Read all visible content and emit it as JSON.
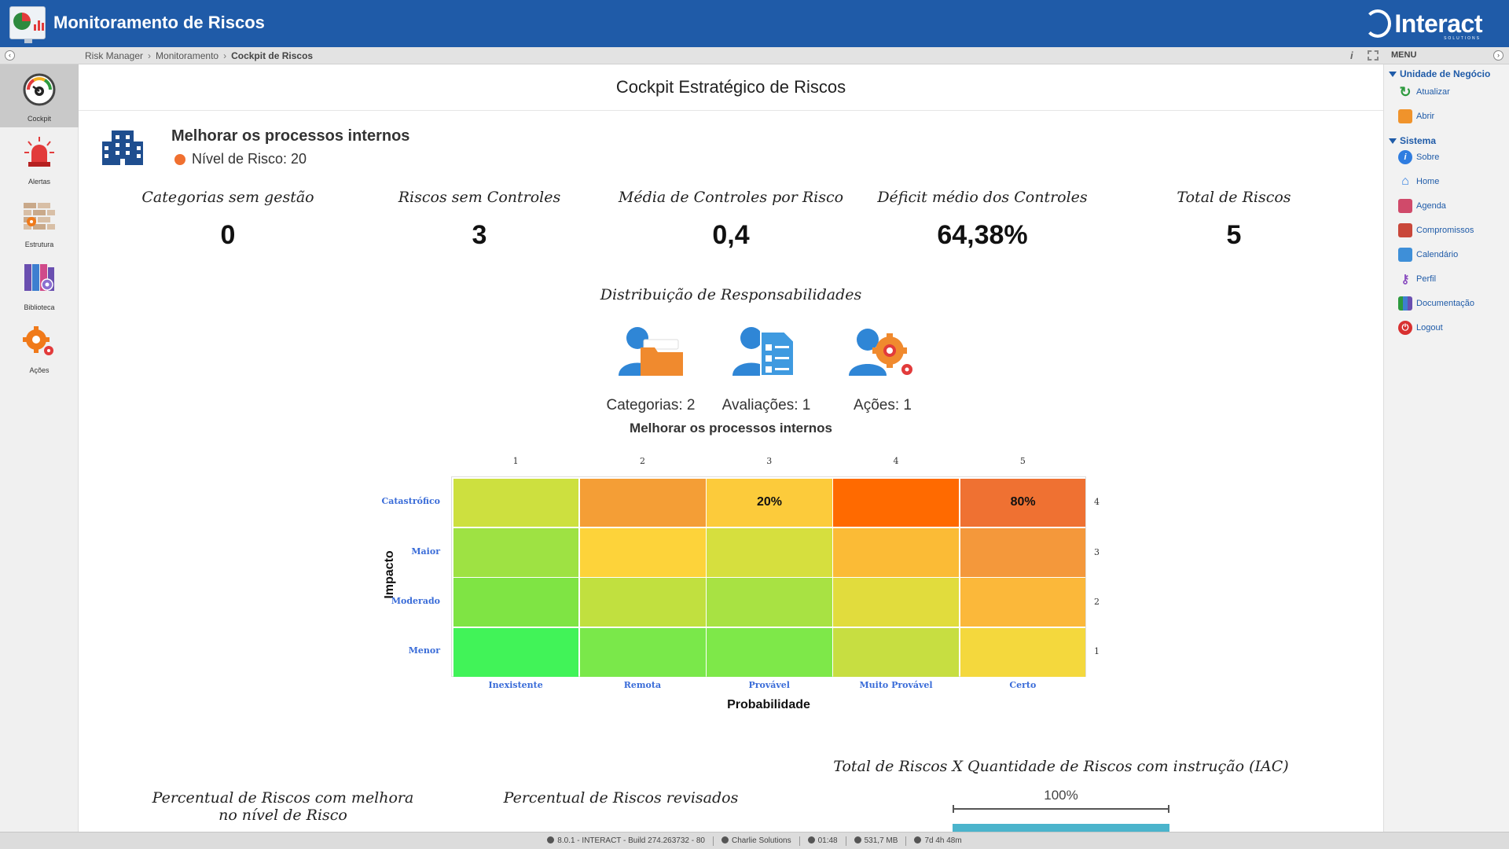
{
  "header": {
    "app_title": "Monitoramento de Riscos",
    "brand": "Interact",
    "brand_sub": "SOLUTIONS"
  },
  "breadcrumb": {
    "items": [
      "Risk Manager",
      "Monitoramento",
      "Cockpit de Riscos"
    ]
  },
  "toolbar": {
    "menu_label": "MENU"
  },
  "left_nav": {
    "items": [
      {
        "label": "Cockpit",
        "icon": "gauge-icon",
        "active": true
      },
      {
        "label": "Alertas",
        "icon": "alarm-light-icon",
        "active": false
      },
      {
        "label": "Estrutura",
        "icon": "brick-wall-icon",
        "active": false
      },
      {
        "label": "Biblioteca",
        "icon": "books-icon",
        "active": false
      },
      {
        "label": "Ações",
        "icon": "gears-icon",
        "active": false
      }
    ]
  },
  "right_menu": {
    "groups": [
      {
        "label": "Unidade de Negócio",
        "items": [
          {
            "label": "Atualizar",
            "icon": "refresh-icon"
          },
          {
            "label": "Abrir",
            "icon": "folder-icon"
          }
        ]
      },
      {
        "label": "Sistema",
        "items": [
          {
            "label": "Sobre",
            "icon": "info-icon"
          },
          {
            "label": "Home",
            "icon": "home-icon"
          },
          {
            "label": "Agenda",
            "icon": "agenda-icon"
          },
          {
            "label": "Compromissos",
            "icon": "briefcase-icon"
          },
          {
            "label": "Calendário",
            "icon": "calendar-icon"
          },
          {
            "label": "Perfil",
            "icon": "key-icon"
          },
          {
            "label": "Documentação",
            "icon": "books-icon"
          },
          {
            "label": "Logout",
            "icon": "power-icon"
          }
        ]
      }
    ]
  },
  "main": {
    "page_title": "Cockpit Estratégico de Riscos",
    "objective": {
      "title": "Melhorar os processos internos",
      "risk_level": "Nível de Risco: 20",
      "risk_color": "#f07030"
    },
    "kpis": [
      {
        "label": "Categorias sem gestão",
        "value": "0"
      },
      {
        "label": "Riscos sem Controles",
        "value": "3"
      },
      {
        "label": "Média de Controles por Risco",
        "value": "0,4"
      },
      {
        "label": "Déficit médio dos Controles",
        "value": "64,38%"
      },
      {
        "label": "Total de Riscos",
        "value": "5"
      }
    ],
    "distribution": {
      "title": "Distribuição de Responsabilidades",
      "items": [
        {
          "label": "Categorias: 2",
          "icon": "user-folder-icon"
        },
        {
          "label": "Avaliações: 1",
          "icon": "user-checklist-icon"
        },
        {
          "label": "Ações: 1",
          "icon": "user-gears-icon"
        }
      ]
    },
    "bottom": {
      "improved_title_1": "Percentual de Riscos com melhora",
      "improved_title_2": "no nível de Risco",
      "reviewed_title": "Percentual de Riscos revisados",
      "iac_title": "Total de Riscos X Quantidade de Riscos com instrução (IAC)",
      "iac_percent_label": "100%",
      "iac_fraction": 1.0
    }
  },
  "chart_data": {
    "type": "heatmap",
    "title": "Melhorar os processos internos",
    "xlabel": "Probabilidade",
    "ylabel": "Impacto",
    "x_categories": [
      "Inexistente",
      "Remota",
      "Provável",
      "Muito Provável",
      "Certo"
    ],
    "x_numbers": [
      "1",
      "2",
      "3",
      "4",
      "5"
    ],
    "y_categories": [
      "Catastrófico",
      "Maior",
      "Moderado",
      "Menor"
    ],
    "y_numbers": [
      "4",
      "3",
      "2",
      "1"
    ],
    "cell_colors": [
      [
        "#cde03f",
        "#f49e36",
        "#fccb3b",
        "#ff6a00",
        "#ef7132"
      ],
      [
        "#9ee243",
        "#fdd33a",
        "#d6df3e",
        "#fbbb36",
        "#f4983b"
      ],
      [
        "#7fe444",
        "#c1e03f",
        "#a8e243",
        "#e1dc3d",
        "#fbb83a"
      ],
      [
        "#41f358",
        "#7ae84a",
        "#7ee849",
        "#c7de41",
        "#f4d83d"
      ]
    ],
    "cell_labels": [
      [
        "",
        "",
        "20%",
        "",
        "80%"
      ],
      [
        "",
        "",
        "",
        "",
        ""
      ],
      [
        "",
        "",
        "",
        "",
        ""
      ],
      [
        "",
        "",
        "",
        "",
        ""
      ]
    ]
  },
  "statusbar": {
    "version": "8.0.1 - INTERACT - Build 274.263732 - 80",
    "company": "Charlie Solutions",
    "time": "01:48",
    "memory": "531,7 MB",
    "uptime": "7d 4h 48m"
  }
}
